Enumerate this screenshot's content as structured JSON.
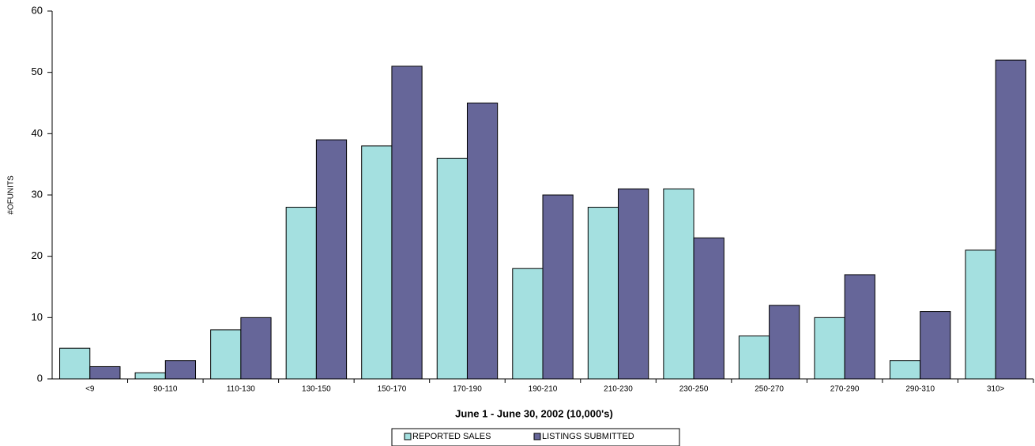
{
  "chart_data": {
    "type": "bar",
    "x_label": "June 1 - June 30, 2002 (10,000's)",
    "y_label": "#OFUNITS",
    "categories": [
      "<9",
      "90-110",
      "110-130",
      "130-150",
      "150-170",
      "170-190",
      "190-210",
      "210-230",
      "230-250",
      "250-270",
      "270-290",
      "290-310",
      "310>"
    ],
    "series": [
      {
        "name": "REPORTED SALES",
        "color": "#a4e0e0",
        "values": [
          5,
          1,
          8,
          28,
          38,
          36,
          18,
          28,
          31,
          7,
          10,
          3,
          21
        ]
      },
      {
        "name": "LISTINGS SUBMITTED",
        "color": "#666699",
        "values": [
          2,
          3,
          10,
          39,
          51,
          45,
          30,
          31,
          23,
          12,
          17,
          11,
          52
        ]
      }
    ],
    "ylim": [
      0,
      60
    ],
    "yticks": [
      0,
      10,
      20,
      30,
      40,
      50,
      60
    ],
    "grid": false
  }
}
